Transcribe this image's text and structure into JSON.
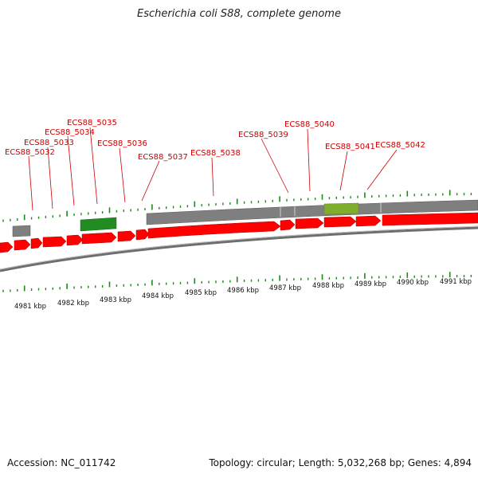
{
  "title": "Escherichia coli S88, complete genome",
  "footer": {
    "accession": "Accession: NC_011742",
    "summary": "Topology: circular; Length: 5,032,268 bp; Genes: 4,894"
  },
  "colors": {
    "cds_forward": "#ff0000",
    "gene_grey": "#7f7f7f",
    "rna_green": "#228b22",
    "highlight_olive": "#7fae2e",
    "tick_green": "#1a8a1a",
    "label_red": "#cc0000"
  },
  "gene_labels": [
    "ECS88_5032",
    "ECS88_5033",
    "ECS88_5034",
    "ECS88_5035",
    "ECS88_5036",
    "ECS88_5037",
    "ECS88_5038",
    "ECS88_5039",
    "ECS88_5040",
    "ECS88_5041",
    "ECS88_5042"
  ],
  "kbp_labels": [
    "4981 kbp",
    "4982 kbp",
    "4983 kbp",
    "4984 kbp",
    "4985 kbp",
    "4986 kbp",
    "4987 kbp",
    "4988 kbp",
    "4989 kbp",
    "4990 kbp",
    "4991 kbp"
  ]
}
